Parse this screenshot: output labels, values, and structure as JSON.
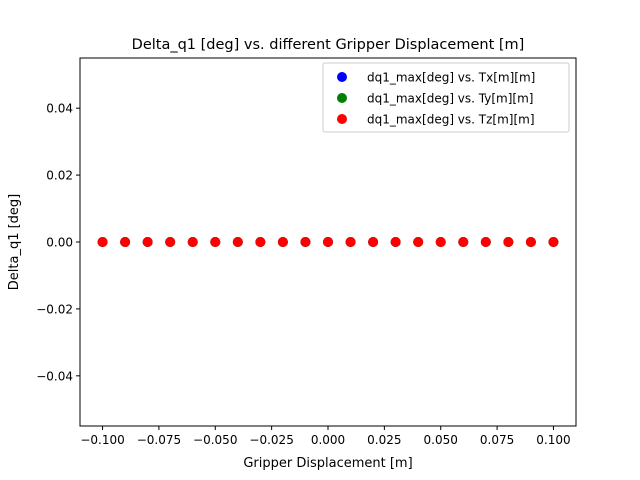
{
  "chart_data": {
    "type": "scatter",
    "title": "Delta_q1 [deg] vs. different Gripper Displacement [m]",
    "xlabel": "Gripper Displacement [m]",
    "ylabel": "Delta_q1 [deg]",
    "xlim": [
      -0.11,
      0.11
    ],
    "ylim": [
      -0.055,
      0.055
    ],
    "xticks": [
      -0.1,
      -0.075,
      -0.05,
      -0.025,
      0.0,
      0.025,
      0.05,
      0.075,
      0.1
    ],
    "xtick_labels": [
      "−0.100",
      "−0.075",
      "−0.050",
      "−0.025",
      "0.000",
      "0.025",
      "0.050",
      "0.075",
      "0.100"
    ],
    "yticks": [
      -0.04,
      -0.02,
      0.0,
      0.02,
      0.04
    ],
    "ytick_labels": [
      "−0.04",
      "−0.02",
      "0.00",
      "0.02",
      "0.04"
    ],
    "grid": false,
    "legend_position": "top-right",
    "x": [
      -0.1,
      -0.09,
      -0.08,
      -0.07,
      -0.06,
      -0.05,
      -0.04,
      -0.03,
      -0.02,
      -0.01,
      0.0,
      0.01,
      0.02,
      0.03,
      0.04,
      0.05,
      0.06,
      0.07,
      0.08,
      0.09,
      0.1
    ],
    "series": [
      {
        "name": "dq1_max[deg] vs. Tx[m][m]",
        "color": "#0000ff",
        "values": [
          0,
          0,
          0,
          0,
          0,
          0,
          0,
          0,
          0,
          0,
          0,
          0,
          0,
          0,
          0,
          0,
          0,
          0,
          0,
          0,
          0
        ]
      },
      {
        "name": "dq1_max[deg] vs. Ty[m][m]",
        "color": "#008000",
        "values": [
          0,
          0,
          0,
          0,
          0,
          0,
          0,
          0,
          0,
          0,
          0,
          0,
          0,
          0,
          0,
          0,
          0,
          0,
          0,
          0,
          0
        ]
      },
      {
        "name": "dq1_max[deg] vs. Tz[m][m]",
        "color": "#ff0000",
        "values": [
          0,
          0,
          0,
          0,
          0,
          0,
          0,
          0,
          0,
          0,
          0,
          0,
          0,
          0,
          0,
          0,
          0,
          0,
          0,
          0,
          0
        ]
      }
    ]
  }
}
